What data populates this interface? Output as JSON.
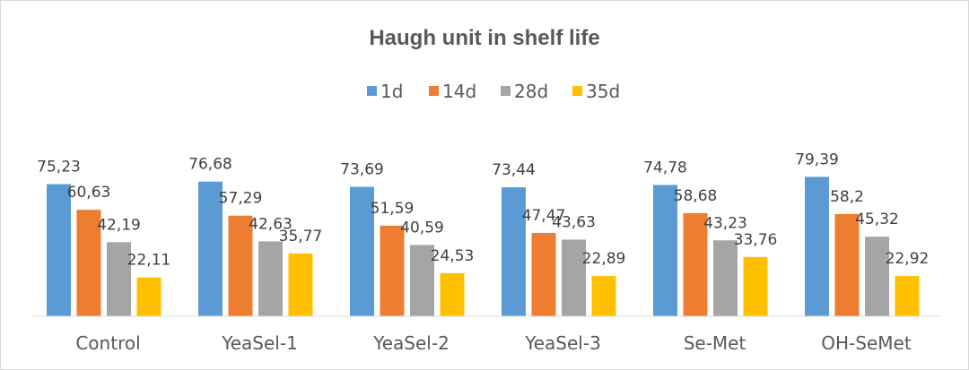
{
  "chart_data": {
    "type": "bar",
    "title": "Haugh unit in shelf life",
    "xlabel": "",
    "ylabel": "",
    "categories": [
      "Control",
      "YeaSel-1",
      "YeaSel-2",
      "YeaSel-3",
      "Se-Met",
      "OH-SeMet"
    ],
    "series": [
      {
        "name": "1d",
        "color": "#5b9bd5",
        "values": [
          75.23,
          76.68,
          73.69,
          73.44,
          74.78,
          79.39
        ],
        "labels": [
          "75,23",
          "76,68",
          "73,69",
          "73,44",
          "74,78",
          "79,39"
        ]
      },
      {
        "name": "14d",
        "color": "#ed7d31",
        "values": [
          60.63,
          57.29,
          51.59,
          47.47,
          58.68,
          58.2
        ],
        "labels": [
          "60,63",
          "57,29",
          "51,59",
          "47,47",
          "58,68",
          "58,2"
        ]
      },
      {
        "name": "28d",
        "color": "#a5a5a5",
        "values": [
          42.19,
          42.63,
          40.59,
          43.63,
          43.23,
          45.32
        ],
        "labels": [
          "42,19",
          "42,63",
          "40,59",
          "43,63",
          "43,23",
          "45,32"
        ]
      },
      {
        "name": "35d",
        "color": "#ffc000",
        "values": [
          22.11,
          35.77,
          24.53,
          22.89,
          33.76,
          22.92
        ],
        "labels": [
          "22,11",
          "35,77",
          "24,53",
          "22,89",
          "33,76",
          "22,92"
        ]
      }
    ],
    "ylim": [
      0,
      100
    ],
    "grid": false,
    "legend": "top-center",
    "data_labels": true
  }
}
